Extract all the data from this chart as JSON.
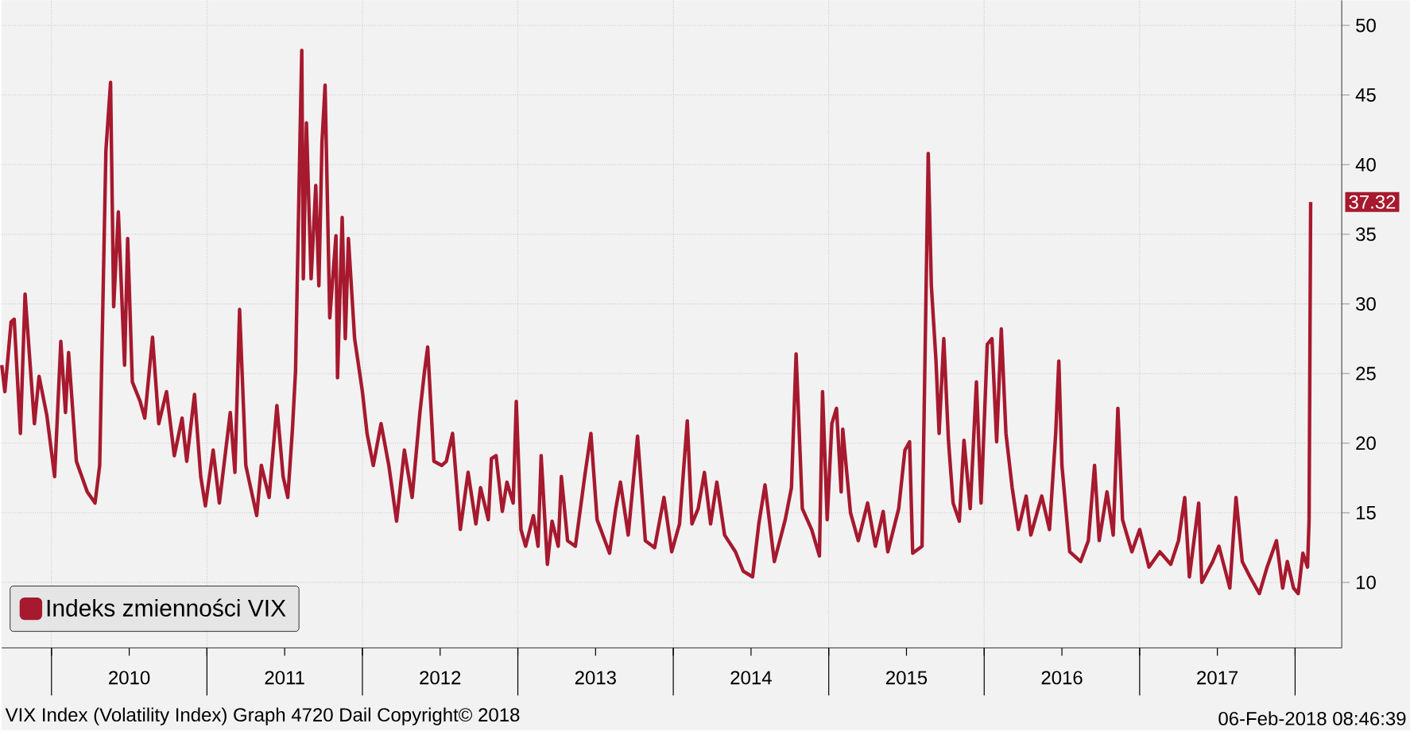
{
  "chart_data": {
    "type": "line",
    "x": [
      2009.68,
      2009.7,
      2009.74,
      2009.76,
      2009.8,
      2009.83,
      2009.89,
      2009.92,
      2009.97,
      2010.02,
      2010.06,
      2010.09,
      2010.11,
      2010.16,
      2010.23,
      2010.28,
      2010.31,
      2010.35,
      2010.38,
      2010.4,
      2010.43,
      2010.47,
      2010.49,
      2010.52,
      2010.57,
      2010.6,
      2010.65,
      2010.69,
      2010.74,
      2010.79,
      2010.84,
      2010.87,
      2010.92,
      2010.96,
      2010.99,
      2011.04,
      2011.08,
      2011.15,
      2011.18,
      2011.21,
      2011.25,
      2011.32,
      2011.35,
      2011.4,
      2011.45,
      2011.49,
      2011.52,
      2011.55,
      2011.57,
      2011.6,
      2011.61,
      2011.62,
      2011.64,
      2011.67,
      2011.7,
      2011.72,
      2011.74,
      2011.76,
      2011.79,
      2011.83,
      2011.84,
      2011.87,
      2011.89,
      2011.91,
      2011.95,
      2012.0,
      2012.03,
      2012.07,
      2012.12,
      2012.17,
      2012.22,
      2012.27,
      2012.32,
      2012.37,
      2012.4,
      2012.42,
      2012.46,
      2012.51,
      2012.54,
      2012.58,
      2012.63,
      2012.68,
      2012.73,
      2012.76,
      2012.81,
      2012.83,
      2012.86,
      2012.9,
      2012.93,
      2012.97,
      2012.99,
      2013.02,
      2013.05,
      2013.1,
      2013.13,
      2013.15,
      2013.19,
      2013.22,
      2013.26,
      2013.28,
      2013.32,
      2013.37,
      2013.43,
      2013.47,
      2013.51,
      2013.59,
      2013.63,
      2013.66,
      2013.71,
      2013.77,
      2013.82,
      2013.88,
      2013.94,
      2013.99,
      2014.04,
      2014.09,
      2014.12,
      2014.16,
      2014.2,
      2014.24,
      2014.28,
      2014.33,
      2014.4,
      2014.45,
      2014.51,
      2014.55,
      2014.59,
      2014.65,
      2014.72,
      2014.76,
      2014.79,
      2014.83,
      2014.89,
      2014.94,
      2014.96,
      2014.99,
      2015.02,
      2015.05,
      2015.08,
      2015.09,
      2015.14,
      2015.19,
      2015.25,
      2015.3,
      2015.35,
      2015.38,
      2015.45,
      2015.49,
      2015.52,
      2015.54,
      2015.6,
      2015.64,
      2015.66,
      2015.69,
      2015.71,
      2015.74,
      2015.77,
      2015.8,
      2015.84,
      2015.87,
      2015.91,
      2015.95,
      2015.98,
      2016.02,
      2016.05,
      2016.08,
      2016.11,
      2016.14,
      2016.18,
      2016.22,
      2016.27,
      2016.3,
      2016.37,
      2016.42,
      2016.46,
      2016.48,
      2016.5,
      2016.55,
      2016.62,
      2016.67,
      2016.71,
      2016.74,
      2016.79,
      2016.83,
      2016.86,
      2016.89,
      2016.95,
      2017.0,
      2017.06,
      2017.13,
      2017.2,
      2017.25,
      2017.29,
      2017.32,
      2017.38,
      2017.4,
      2017.47,
      2017.51,
      2017.58,
      2017.62,
      2017.66,
      2017.71,
      2017.77,
      2017.82,
      2017.88,
      2017.92,
      2017.95,
      2017.99,
      2018.02,
      2018.05,
      2018.08,
      2018.09,
      2018.1
    ],
    "series": [
      {
        "name": "Indeks zmienności VIX",
        "color": "#a6192e",
        "values": [
          25.6,
          23.7,
          28.7,
          28.9,
          20.7,
          30.7,
          21.4,
          24.8,
          22.0,
          17.6,
          27.3,
          22.2,
          26.5,
          18.7,
          16.5,
          15.7,
          18.4,
          41.0,
          45.9,
          29.8,
          36.6,
          25.6,
          34.7,
          24.4,
          23.0,
          21.8,
          27.6,
          21.4,
          23.7,
          19.1,
          21.8,
          18.7,
          23.5,
          17.6,
          15.5,
          19.5,
          15.7,
          22.2,
          17.9,
          29.6,
          18.4,
          14.8,
          18.4,
          16.1,
          22.7,
          17.6,
          16.1,
          21.0,
          25.2,
          42.7,
          48.2,
          31.8,
          43.0,
          31.8,
          38.5,
          31.3,
          41.6,
          45.7,
          29.0,
          34.9,
          24.7,
          36.2,
          27.5,
          34.7,
          27.5,
          23.7,
          20.7,
          18.4,
          21.4,
          18.4,
          14.4,
          19.5,
          16.1,
          22.2,
          25.2,
          26.9,
          18.7,
          18.4,
          18.7,
          20.7,
          13.8,
          17.9,
          14.2,
          16.8,
          14.5,
          18.9,
          19.1,
          15.1,
          17.2,
          15.7,
          23.0,
          13.8,
          12.6,
          14.8,
          12.6,
          19.1,
          11.3,
          14.4,
          12.6,
          17.6,
          13.0,
          12.6,
          17.6,
          20.7,
          14.5,
          12.1,
          15.3,
          17.2,
          13.4,
          20.5,
          13.0,
          12.5,
          16.1,
          12.2,
          14.2,
          21.6,
          14.2,
          15.3,
          17.9,
          14.2,
          17.2,
          13.4,
          12.2,
          10.8,
          10.4,
          14.2,
          17.0,
          11.5,
          14.5,
          16.8,
          26.4,
          15.3,
          13.8,
          11.9,
          23.7,
          14.5,
          21.4,
          22.5,
          16.5,
          21.0,
          15.0,
          13.0,
          15.7,
          12.6,
          15.1,
          12.2,
          15.3,
          19.5,
          20.1,
          12.1,
          12.6,
          40.8,
          31.3,
          25.9,
          20.7,
          27.5,
          20.2,
          15.7,
          14.4,
          20.2,
          15.3,
          24.4,
          15.7,
          27.1,
          27.5,
          20.1,
          28.2,
          20.7,
          16.8,
          13.8,
          16.2,
          13.4,
          16.2,
          13.8,
          20.7,
          25.9,
          18.4,
          12.2,
          11.5,
          13.0,
          18.4,
          13.0,
          16.5,
          13.4,
          22.5,
          14.5,
          12.2,
          13.8,
          11.1,
          12.2,
          11.3,
          13.0,
          16.1,
          10.4,
          15.7,
          10.0,
          11.5,
          12.6,
          9.6,
          16.1,
          11.5,
          10.4,
          9.2,
          11.1,
          13.0,
          9.6,
          11.5,
          9.6,
          9.2,
          12.1,
          11.1,
          14.5,
          37.32
        ]
      }
    ],
    "xlim": [
      2009.68,
      2018.3
    ],
    "ylim": [
      5.3,
      51.8
    ],
    "xticks": [
      {
        "value": 2010,
        "label": null
      },
      {
        "value": 2010.5,
        "label": "2010"
      },
      {
        "value": 2011,
        "label": null
      },
      {
        "value": 2011.5,
        "label": "2011"
      },
      {
        "value": 2012,
        "label": null
      },
      {
        "value": 2012.5,
        "label": "2012"
      },
      {
        "value": 2013,
        "label": null
      },
      {
        "value": 2013.5,
        "label": "2013"
      },
      {
        "value": 2014,
        "label": null
      },
      {
        "value": 2014.5,
        "label": "2014"
      },
      {
        "value": 2015,
        "label": null
      },
      {
        "value": 2015.5,
        "label": "2015"
      },
      {
        "value": 2016,
        "label": null
      },
      {
        "value": 2016.5,
        "label": "2016"
      },
      {
        "value": 2017,
        "label": null
      },
      {
        "value": 2017.5,
        "label": "2017"
      },
      {
        "value": 2018,
        "label": null
      }
    ],
    "yticks": [
      10,
      15,
      20,
      25,
      30,
      35,
      40,
      45,
      50
    ],
    "grid": true,
    "legend": "bottom left",
    "annotations": [
      {
        "text": "37.32",
        "x": 2018.1,
        "y": 37.32
      },
      "VIX Index (Volatility Index) Graph 4720  Dail  Copyright© 2018",
      "06-Feb-2018 08:46:39"
    ]
  }
}
